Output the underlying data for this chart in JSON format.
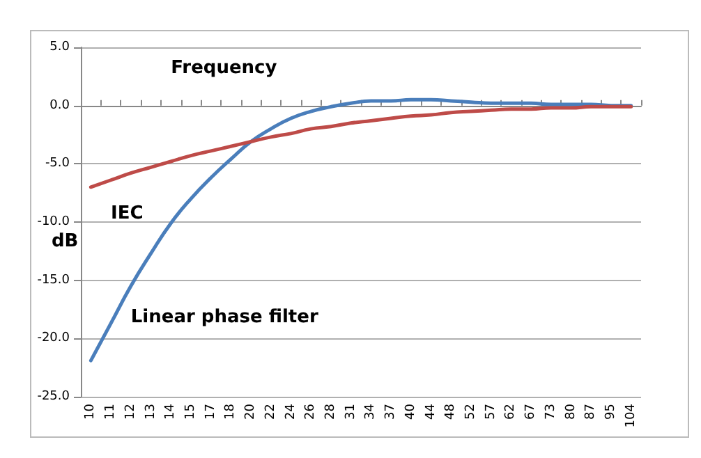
{
  "chart_data": {
    "type": "line",
    "xlabel": "Frequency",
    "ylabel": "dB",
    "categories": [
      "10",
      "11",
      "12",
      "13",
      "14",
      "15",
      "17",
      "18",
      "20",
      "22",
      "24",
      "26",
      "28",
      "31",
      "34",
      "37",
      "40",
      "44",
      "48",
      "52",
      "57",
      "62",
      "67",
      "73",
      "80",
      "87",
      "95",
      "104"
    ],
    "series": [
      {
        "name": "Linear phase filter",
        "color": "#4a7ebb",
        "values": [
          -21.9,
          -18.7,
          -15.5,
          -12.7,
          -10.1,
          -8.0,
          -6.2,
          -4.6,
          -3.1,
          -2.0,
          -1.1,
          -0.5,
          -0.1,
          0.2,
          0.4,
          0.4,
          0.5,
          0.5,
          0.4,
          0.3,
          0.2,
          0.2,
          0.2,
          0.1,
          0.1,
          0.1,
          0.0,
          0.0
        ]
      },
      {
        "name": "IEC",
        "color": "#be4b48",
        "values": [
          -7.0,
          -6.4,
          -5.8,
          -5.3,
          -4.8,
          -4.3,
          -3.9,
          -3.5,
          -3.1,
          -2.7,
          -2.4,
          -2.0,
          -1.8,
          -1.5,
          -1.3,
          -1.1,
          -0.9,
          -0.8,
          -0.6,
          -0.5,
          -0.4,
          -0.3,
          -0.3,
          -0.2,
          -0.2,
          -0.1,
          -0.1,
          -0.1
        ]
      }
    ],
    "ylim": [
      -25,
      5
    ],
    "yticks": [
      {
        "value": -25,
        "label": "-25.0"
      },
      {
        "value": -20,
        "label": "-20.0"
      },
      {
        "value": -15,
        "label": "-15.0"
      },
      {
        "value": -10,
        "label": "-10.0"
      },
      {
        "value": -5,
        "label": "-5.0"
      },
      {
        "value": 0,
        "label": "0.0"
      },
      {
        "value": 5,
        "label": "5.0"
      }
    ],
    "grid": "y",
    "legend": false,
    "marker": "none",
    "line_style": "solid"
  }
}
